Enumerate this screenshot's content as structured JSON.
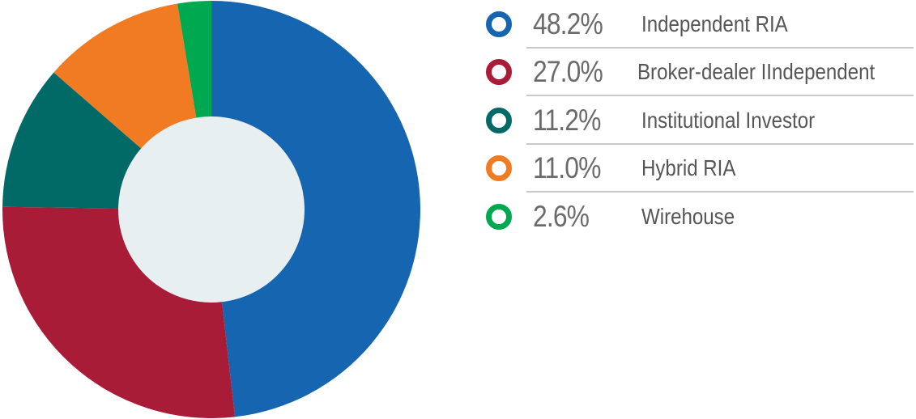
{
  "chart_data": {
    "type": "pie",
    "donut": true,
    "title": "",
    "slices": [
      {
        "label": "Independent RIA",
        "value_label": "48.2%",
        "value": 48.2,
        "color": "#1665b1"
      },
      {
        "label": "Broker-dealer IIndependent",
        "value_label": "27.0%",
        "value": 27.0,
        "color": "#a81c37"
      },
      {
        "label": "Institutional Investor",
        "value_label": "11.2%",
        "value": 11.2,
        "color": "#016a67"
      },
      {
        "label": "Hybrid RIA",
        "value_label": "11.0%",
        "value": 11.0,
        "color": "#f07b22"
      },
      {
        "label": "Wirehouse",
        "value_label": "2.6%",
        "value": 2.6,
        "color": "#00a84f"
      }
    ],
    "legend_position": "right",
    "center_color": "#e8eff0"
  }
}
